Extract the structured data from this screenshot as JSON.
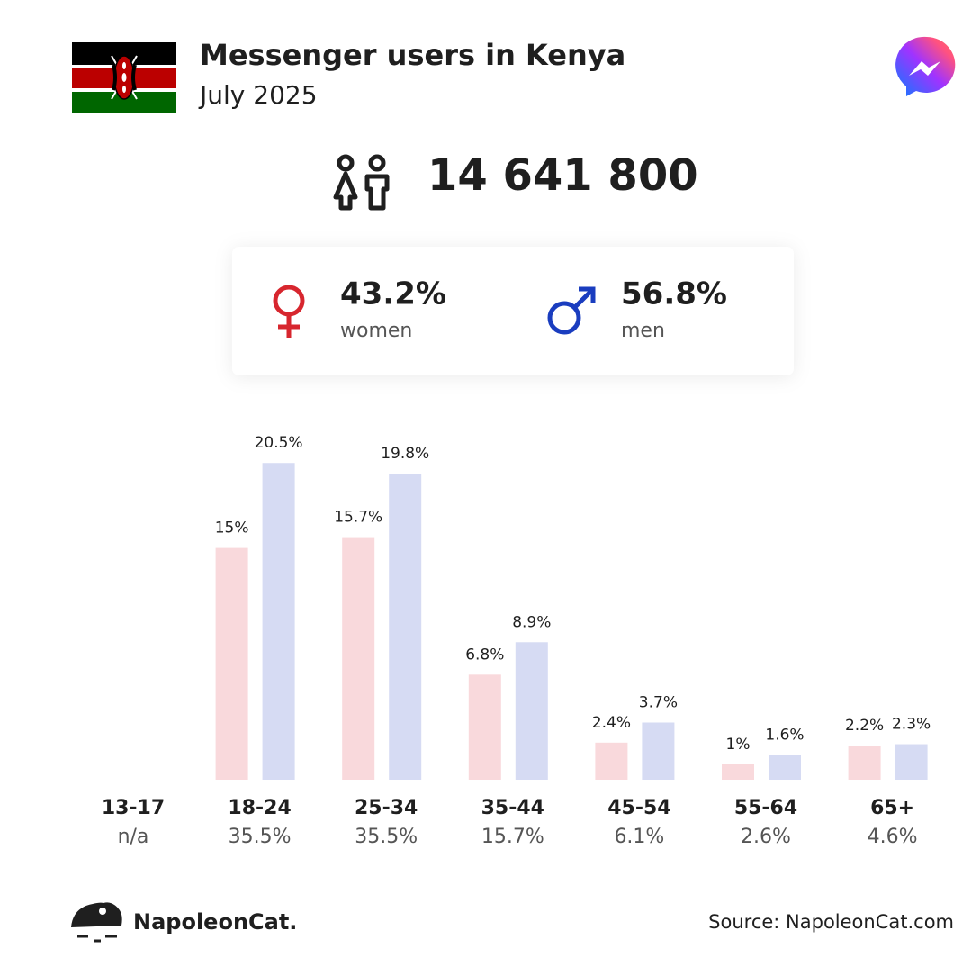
{
  "header": {
    "title": "Messenger users in Kenya",
    "subtitle": "July 2025"
  },
  "total_users": {
    "value": 14641800,
    "label": "14 641 800"
  },
  "gender": {
    "women": {
      "value": 43.2,
      "label": "43.2%",
      "name": "women",
      "color": "#d7262e"
    },
    "men": {
      "value": 56.8,
      "label": "56.8%",
      "name": "men",
      "color": "#1a3dbf"
    }
  },
  "chart_data": {
    "type": "bar",
    "categories": [
      "13-17",
      "18-24",
      "25-34",
      "35-44",
      "45-54",
      "55-64",
      "65+"
    ],
    "series": [
      {
        "color": "#f9d9dc",
        "values": [
          null,
          15,
          15.7,
          6.8,
          2.4,
          1,
          2.2
        ],
        "value_labels": [
          null,
          "15%",
          "15.7%",
          "6.8%",
          "2.4%",
          "1%",
          "2.2%"
        ]
      },
      {
        "color": "#d6dbf3",
        "values": [
          null,
          20.5,
          19.8,
          8.9,
          3.7,
          1.6,
          2.3
        ],
        "value_labels": [
          null,
          "20.5%",
          "19.8%",
          "8.9%",
          "3.7%",
          "1.6%",
          "2.3%"
        ]
      }
    ],
    "category_shares": {
      "values": [
        null,
        35.5,
        35.5,
        15.7,
        6.1,
        2.6,
        4.6
      ],
      "value_labels": [
        "n/a",
        "35.5%",
        "35.5%",
        "15.7%",
        "6.1%",
        "2.6%",
        "4.6%"
      ]
    },
    "ylim": [
      0,
      25
    ]
  },
  "footer": {
    "brand": "NapoleonCat.",
    "source": "Source: NapoleonCat.com"
  }
}
